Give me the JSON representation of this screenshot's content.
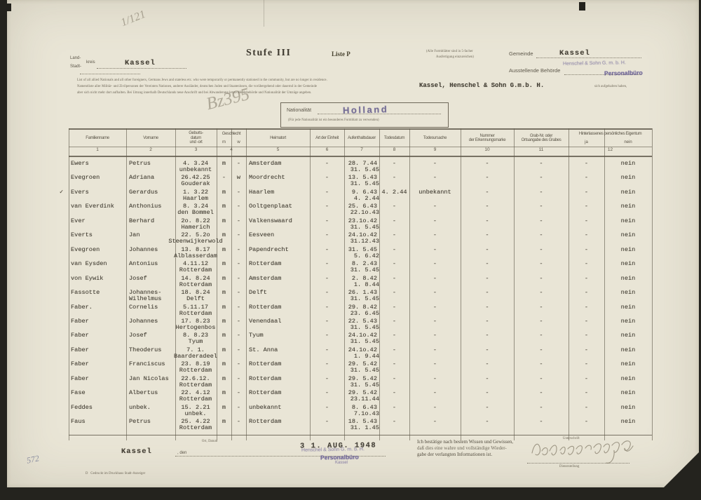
{
  "scan": {
    "paper_color": "#e9e5d6",
    "ink_color": "#443f35",
    "stamp_purple": "#625891",
    "margin_number": "572",
    "pencil_top": "1/121",
    "pencil_note": "Bz395",
    "row3_checkmark": "✓"
  },
  "header": {
    "kreis_label_line1": "Land-",
    "kreis_label_line2": "Stadt-",
    "kreis_label_suffix": "kreis",
    "kreis_value": "Kassel",
    "stufe": "Stufe III",
    "liste": "Liste P",
    "copies_note_line1": "(Alle Formblätter sind in 5-facher",
    "copies_note_line2": "Ausfertigung einzureichen)",
    "gemeinde_label": "Gemeinde",
    "gemeinde_value": "Kassel",
    "behoerde_label": "Ausstellende Behörde",
    "behoerde_stamp_line1": "Henschel & Sohn G. m. b. H.",
    "behoerde_stamp_line2": "Personalbüro"
  },
  "intro": {
    "line1": "List of all allied Nationals and all other foreigners, Germans Jews and stateless etc. who were temporarily or permanently stationed in the community, but are no longer in residence.",
    "line2_prefix": "Namentliste aller Militär- und Zivilpersonen der Vereinten Nationen, anderer Ausländer, deutschen Juden und Staatenlosen, die vorübergehend oder dauernd in der Gemeinde",
    "company_typed": "Kassel, Henschel & Sohn G.m.b. H.",
    "line2_suffix": "sich aufgehalten haben,",
    "line3": "aber sich nicht mehr dort aufhalten. Bei Umzug innerhalb Deutschlands neue Anschrift und bei Abwanderung letzte Meldebehörde und Nationalität der Umzüge angeben."
  },
  "nationality_box": {
    "label": "Nationalität",
    "value": "Holland",
    "note": "(Für jede Nationalität ist ein besonderes Formblatt zu verwenden)"
  },
  "table": {
    "columns": [
      {
        "label": "Familienname",
        "num": "1"
      },
      {
        "label": "Vorname",
        "num": "2"
      },
      {
        "label": "Geburts-\ndatum\nund -ort",
        "num": "3"
      },
      {
        "label": "Geschlecht",
        "num": "4",
        "sub": [
          "m",
          "w"
        ]
      },
      {
        "label": "Heimatort",
        "num": "5"
      },
      {
        "label": "Art der Einheit",
        "num": "6"
      },
      {
        "label": "Aufenthaltsdauer",
        "num": "7"
      },
      {
        "label": "Todesdatum",
        "num": "8"
      },
      {
        "label": "Todesursache",
        "num": "9"
      },
      {
        "label": "Nummer\nder Erkennungsmarke",
        "num": "10"
      },
      {
        "label": "Grab-Nr. oder\nOrtsangabe des Grabes",
        "num": "11"
      },
      {
        "label": "Hinterlassenes persönliches Eigentum",
        "num": "12",
        "sub": [
          "ja",
          "nein"
        ]
      }
    ],
    "rows": [
      {
        "mark": "",
        "fam": "Ewers",
        "vor": "Petrus",
        "vor2": "",
        "bdate": "4. 3.24",
        "bplace": "unbekannt",
        "m": "m",
        "w": "-",
        "heim": "Amsterdam",
        "einh": "-",
        "stay1": "28. 7.44",
        "stay2": "31. 5.45",
        "tdat": "-",
        "turs": "-",
        "marke": "-",
        "grab": "-",
        "eja": "-",
        "enein": "nein"
      },
      {
        "mark": "",
        "fam": "Evegroen",
        "vor": "Adriana",
        "vor2": "",
        "bdate": "26.42.25",
        "bplace": "Gouderak",
        "m": "-",
        "w": "w",
        "heim": "Moordrecht",
        "einh": "-",
        "stay1": "13. 5.43",
        "stay2": "31. 5.45",
        "tdat": "-",
        "turs": "-",
        "marke": "-",
        "grab": "-",
        "eja": "-",
        "enein": "nein"
      },
      {
        "mark": "✓",
        "fam": "Evers",
        "vor": "Gerardus",
        "vor2": "",
        "bdate": "1. 3.22",
        "bplace": "Haarlem",
        "m": "m",
        "w": "-",
        "heim": "Haarlem",
        "einh": "-",
        "stay1": "9. 6.43",
        "stay2": "4. 2.44",
        "tdat": "4. 2.44",
        "turs": "unbekannt",
        "marke": "-",
        "grab": "-",
        "eja": "-",
        "enein": "nein"
      },
      {
        "mark": "",
        "fam": "van Everdink",
        "vor": "Anthonius",
        "vor2": "",
        "bdate": "8. 3.24",
        "bplace": "den Bommel",
        "m": "m",
        "w": "-",
        "heim": "Ooltgenplaat",
        "einh": "-",
        "stay1": "25. 6.43",
        "stay2": "22.1o.43",
        "tdat": "-",
        "turs": "-",
        "marke": "-",
        "grab": "-",
        "eja": "-",
        "enein": "nein"
      },
      {
        "mark": "",
        "fam": "Ever",
        "vor": "Berhard",
        "vor2": "",
        "bdate": "2o. 8.22",
        "bplace": "Hamerich",
        "m": "m",
        "w": "-",
        "heim": "Valkenswaard",
        "einh": "-",
        "stay1": "23.1o.42",
        "stay2": "31. 5.45",
        "tdat": "-",
        "turs": "-",
        "marke": "-",
        "grab": "-",
        "eja": "-",
        "enein": "nein"
      },
      {
        "mark": "",
        "fam": "Everts",
        "vor": "Jan",
        "vor2": "",
        "bdate": "22. 5.2o",
        "bplace": "Steenwijkerwold",
        "m": "m",
        "w": "-",
        "heim": "Eesveen",
        "einh": "-",
        "stay1": "24.1o.42",
        "stay2": "31.12.43",
        "tdat": "-",
        "turs": "-",
        "marke": "-",
        "grab": "-",
        "eja": "-",
        "enein": "nein"
      },
      {
        "mark": "",
        "fam": "Evegroen",
        "vor": "Johannes",
        "vor2": "",
        "bdate": "13. 8.17",
        "bplace": "Alblasserdam",
        "m": "m",
        "w": "-",
        "heim": "Papendrecht",
        "einh": "-",
        "stay1": "31. 5.45",
        "stay2": "5. 6.42",
        "tdat": "-",
        "turs": "-",
        "marke": "-",
        "grab": "-",
        "eja": "-",
        "enein": "nein"
      },
      {
        "mark": "",
        "fam": "van Eysden",
        "vor": "Antonius",
        "vor2": "",
        "bdate": "4.11.12",
        "bplace": "Rotterdam",
        "m": "m",
        "w": "-",
        "heim": "Rotterdam",
        "einh": "-",
        "stay1": "8. 2.43",
        "stay2": "31. 5.45",
        "tdat": "-",
        "turs": "-",
        "marke": "-",
        "grab": "-",
        "eja": "-",
        "enein": "nein"
      },
      {
        "mark": "",
        "fam": "von Eywik",
        "vor": "Josef",
        "vor2": "",
        "bdate": "14. 8.24",
        "bplace": "Rotterdam",
        "m": "m",
        "w": "-",
        "heim": "Amsterdam",
        "einh": "-",
        "stay1": "2. 8.42",
        "stay2": "1. 8.44",
        "tdat": "-",
        "turs": "-",
        "marke": "-",
        "grab": "-",
        "eja": "-",
        "enein": "nein"
      },
      {
        "mark": "",
        "fam": "Fassotte",
        "vor": "Johannes-",
        "vor2": "Wilhelmus",
        "bdate": "18. 8.24",
        "bplace": "Delft",
        "m": "m",
        "w": "-",
        "heim": "Delft",
        "einh": "-",
        "stay1": "26. 1.43",
        "stay2": "31. 5.45",
        "tdat": "-",
        "turs": "-",
        "marke": "-",
        "grab": "-",
        "eja": "-",
        "enein": "nein"
      },
      {
        "mark": "",
        "fam": "Faber.",
        "vor": "Cornelis",
        "vor2": "",
        "bdate": "5.11.17",
        "bplace": "Rotterdam",
        "m": "m",
        "w": "-",
        "heim": "Rotterdam",
        "einh": "-",
        "stay1": "29. 8.42",
        "stay2": "23. 6.45",
        "tdat": "-",
        "turs": "-",
        "marke": "-",
        "grab": "-",
        "eja": "-",
        "enein": "nein"
      },
      {
        "mark": "",
        "fam": "Faber",
        "vor": "Johannes",
        "vor2": "",
        "bdate": "17. 8.23",
        "bplace": "Hertogenbos",
        "m": "m",
        "w": "-",
        "heim": "Venendaal",
        "einh": "-",
        "stay1": "22. 5.43",
        "stay2": "31. 5.45",
        "tdat": "-",
        "turs": "-",
        "marke": "-",
        "grab": "-",
        "eja": "-",
        "enein": "nein"
      },
      {
        "mark": "",
        "fam": "Faber",
        "vor": "Josef",
        "vor2": "",
        "bdate": "8. 8.23",
        "bplace": "Tyum",
        "m": "m",
        "w": "-",
        "heim": "Tyum",
        "einh": "-",
        "stay1": "24.1o.42",
        "stay2": "31. 5.45",
        "tdat": "-",
        "turs": "-",
        "marke": "-",
        "grab": "-",
        "eja": "-",
        "enein": "nein"
      },
      {
        "mark": "",
        "fam": "Faber",
        "vor": "Theoderus",
        "vor2": "",
        "bdate": "7. 1.",
        "bplace": "Baarderadeel",
        "m": "m",
        "w": "-",
        "heim": "St. Anna",
        "einh": "-",
        "stay1": "24.1o.42",
        "stay2": "1. 9.44",
        "tdat": "-",
        "turs": "-",
        "marke": "-",
        "grab": "-",
        "eja": "-",
        "enein": "nein"
      },
      {
        "mark": "",
        "fam": "Faber",
        "vor": "Franciscus",
        "vor2": "",
        "bdate": "23. 8.19",
        "bplace": "Rotterdam",
        "m": "m",
        "w": "-",
        "heim": "Rotterdam",
        "einh": "-",
        "stay1": "29. 5.42",
        "stay2": "31. 5.45",
        "tdat": "-",
        "turs": "-",
        "marke": "-",
        "grab": "-",
        "eja": "-",
        "enein": "nein"
      },
      {
        "mark": "",
        "fam": "Faber",
        "vor": "Jan Nicolas",
        "vor2": "",
        "bdate": "22.6.12.",
        "bplace": "Rotterdam",
        "m": "m",
        "w": "-",
        "heim": "Rotterdam",
        "einh": "-",
        "stay1": "29. 5.42",
        "stay2": "31. 5.45",
        "tdat": "-",
        "turs": "-",
        "marke": "-",
        "grab": "-",
        "eja": "-",
        "enein": "nein"
      },
      {
        "mark": "",
        "fam": "Fase",
        "vor": "Albertus",
        "vor2": "",
        "bdate": "22. 4.12",
        "bplace": "Rotterdam",
        "m": "m",
        "w": "-",
        "heim": "Rotterdam",
        "einh": "-",
        "stay1": "29. 5.42",
        "stay2": "23.11.44",
        "tdat": "-",
        "turs": "-",
        "marke": "-",
        "grab": "-",
        "eja": "-",
        "enein": "nein"
      },
      {
        "mark": "",
        "fam": "Feddes",
        "vor": "unbek.",
        "vor2": "",
        "bdate": "15. 2.21",
        "bplace": "unbek.",
        "m": "m",
        "w": "-",
        "heim": "unbekannt",
        "einh": "-",
        "stay1": "8. 6.43",
        "stay2": "7.1o.43",
        "tdat": "-",
        "turs": "-",
        "marke": "-",
        "grab": "-",
        "eja": "-",
        "enein": "nein"
      },
      {
        "mark": "",
        "fam": "Faus",
        "vor": "Petrus",
        "vor2": "",
        "bdate": "25. 4.22",
        "bplace": "Rotterdam",
        "m": "m",
        "w": "-",
        "heim": "Rotterdam",
        "einh": "-",
        "stay1": "18. 5.43",
        "stay2": "31. 1.45",
        "tdat": "-",
        "turs": "-",
        "marke": "-",
        "grab": "-",
        "eja": "-",
        "enein": "nein"
      }
    ]
  },
  "footer": {
    "ort_label": "Ort, Datum",
    "ort_value": "Kassel",
    "den_label": ", den",
    "date_stamp": "3 1. AUG. 1948",
    "stamp_line1": "Henschel & Sohn G. m. b. H.",
    "stamp_line2": "Personalbüro",
    "stamp_line3": "Kassel",
    "attest_line1": "Ich bestätige nach bestem Wissen und Gewissen,",
    "attest_line2": "daß dies eine wahre und vollständige Wieder-",
    "attest_line3": "gabe der verlangten Informationen ist.",
    "sig_label_top": "Unterschrift",
    "sig_label_bottom": "Dienststellung",
    "print_note": "D   Gedruckt im Druckhaus Stadt-Anzeiger"
  }
}
